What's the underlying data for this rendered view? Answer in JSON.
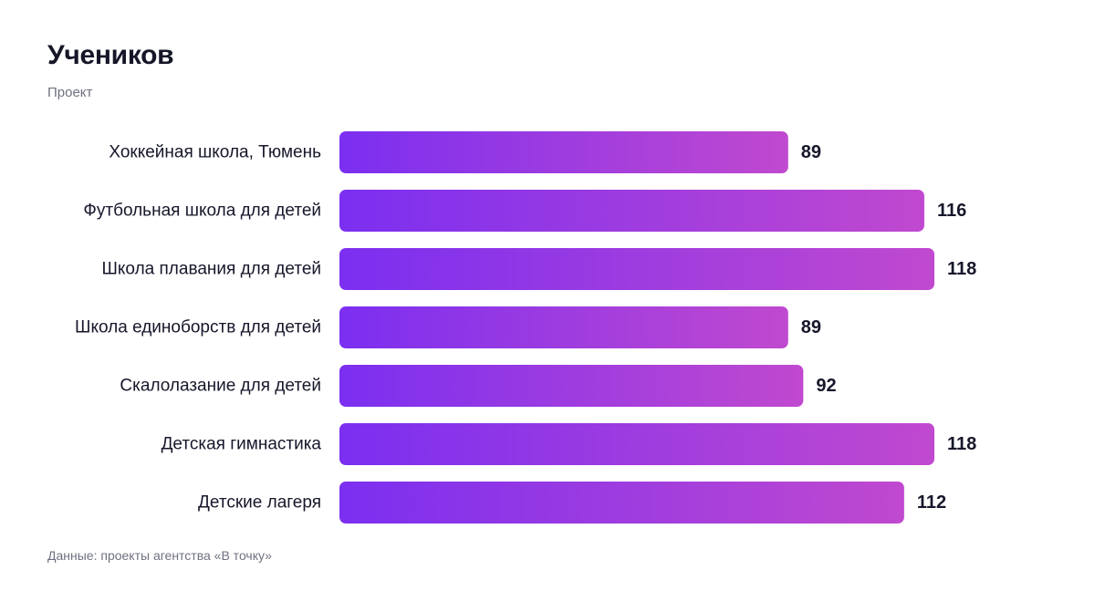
{
  "chart_data": {
    "type": "bar",
    "orientation": "horizontal",
    "title": "Учеников",
    "subtitle": "Проект",
    "source": "Данные: проекты агентства «В точку»",
    "categories": [
      "Хоккейная школа, Тюмень",
      "Футбольная школа для детей",
      "Школа плавания для детей",
      "Школа единоборств для детей",
      "Скалолазание для детей",
      "Детская гимнастика",
      "Детские лагеря"
    ],
    "values": [
      89,
      116,
      118,
      89,
      92,
      118,
      112
    ],
    "xlim": [
      0,
      118
    ],
    "grid": false,
    "legend": "none",
    "colors": {
      "bar_start": "#7B2FF0",
      "bar_end": "#C049CF",
      "label": "#16172a",
      "value": "#16172a"
    }
  }
}
